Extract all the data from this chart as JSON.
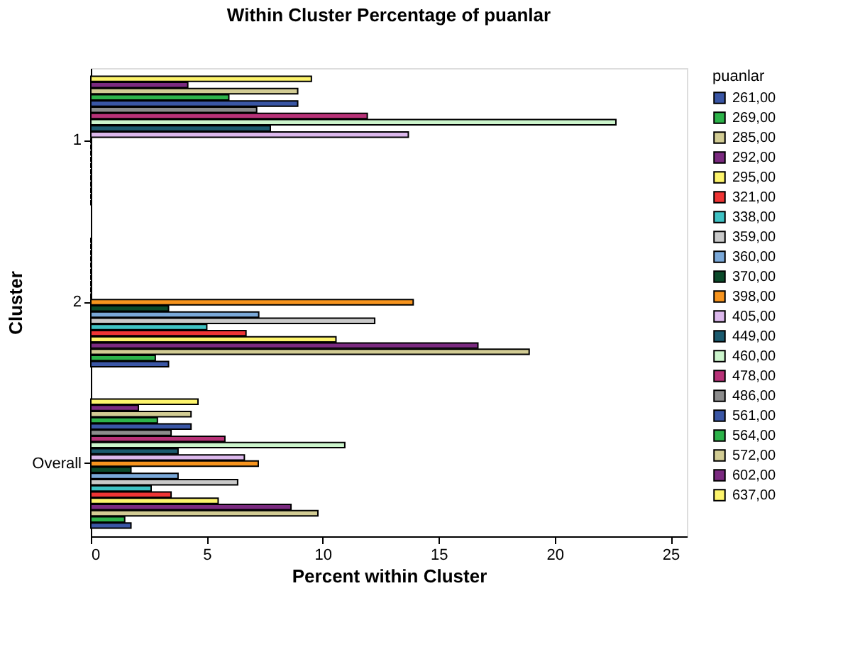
{
  "chart_data": {
    "type": "bar",
    "orientation": "horizontal",
    "title": "Within Cluster Percentage of puanlar",
    "xlabel": "Percent within Cluster",
    "ylabel": "Cluster",
    "legend_title": "puanlar",
    "legend": "right",
    "grid": false,
    "categories": [
      "1",
      "2",
      "Overall"
    ],
    "xlim": [
      0,
      25.7
    ],
    "xticks": [
      0,
      5,
      10,
      15,
      20,
      25
    ],
    "series": [
      {
        "name": "261,00",
        "color": "#3a56a5",
        "values": [
          0,
          3.35,
          1.73
        ]
      },
      {
        "name": "269,00",
        "color": "#2db34a",
        "values": [
          0,
          2.78,
          1.46
        ]
      },
      {
        "name": "285,00",
        "color": "#d2cc94",
        "values": [
          0,
          18.9,
          9.79
        ]
      },
      {
        "name": "292,00",
        "color": "#7b2a80",
        "values": [
          0,
          16.69,
          8.63
        ]
      },
      {
        "name": "295,00",
        "color": "#fdf46c",
        "values": [
          0,
          10.57,
          5.49
        ]
      },
      {
        "name": "321,00",
        "color": "#ef3535",
        "values": [
          0,
          6.69,
          3.46
        ]
      },
      {
        "name": "338,00",
        "color": "#3fc2c4",
        "values": [
          0,
          5.0,
          2.6
        ]
      },
      {
        "name": "359,00",
        "color": "#c9c9c9",
        "values": [
          0,
          12.24,
          6.33
        ]
      },
      {
        "name": "360,00",
        "color": "#7aa8d8",
        "values": [
          0,
          7.24,
          3.76
        ]
      },
      {
        "name": "370,00",
        "color": "#0b4a2a",
        "values": [
          0,
          3.35,
          1.73
        ]
      },
      {
        "name": "398,00",
        "color": "#f7941e",
        "values": [
          0,
          13.9,
          7.22
        ]
      },
      {
        "name": "405,00",
        "color": "#dcb8ec",
        "values": [
          13.69,
          0,
          6.62
        ]
      },
      {
        "name": "449,00",
        "color": "#1b5a6e",
        "values": [
          7.74,
          0,
          3.76
        ]
      },
      {
        "name": "460,00",
        "color": "#ccf5cc",
        "values": [
          22.64,
          0,
          10.95
        ]
      },
      {
        "name": "478,00",
        "color": "#b83278",
        "values": [
          11.92,
          0,
          5.78
        ]
      },
      {
        "name": "486,00",
        "color": "#8c8c8c",
        "values": [
          7.15,
          0,
          3.46
        ]
      },
      {
        "name": "561,00",
        "color": "#3a56a5",
        "values": [
          8.92,
          0,
          4.32
        ]
      },
      {
        "name": "564,00",
        "color": "#2db34a",
        "values": [
          5.95,
          0,
          2.87
        ]
      },
      {
        "name": "572,00",
        "color": "#d2cc94",
        "values": [
          8.92,
          0,
          4.32
        ]
      },
      {
        "name": "602,00",
        "color": "#7b2a80",
        "values": [
          4.18,
          0,
          2.05
        ]
      },
      {
        "name": "637,00",
        "color": "#fdf46c",
        "values": [
          9.51,
          0,
          4.62
        ]
      }
    ]
  }
}
